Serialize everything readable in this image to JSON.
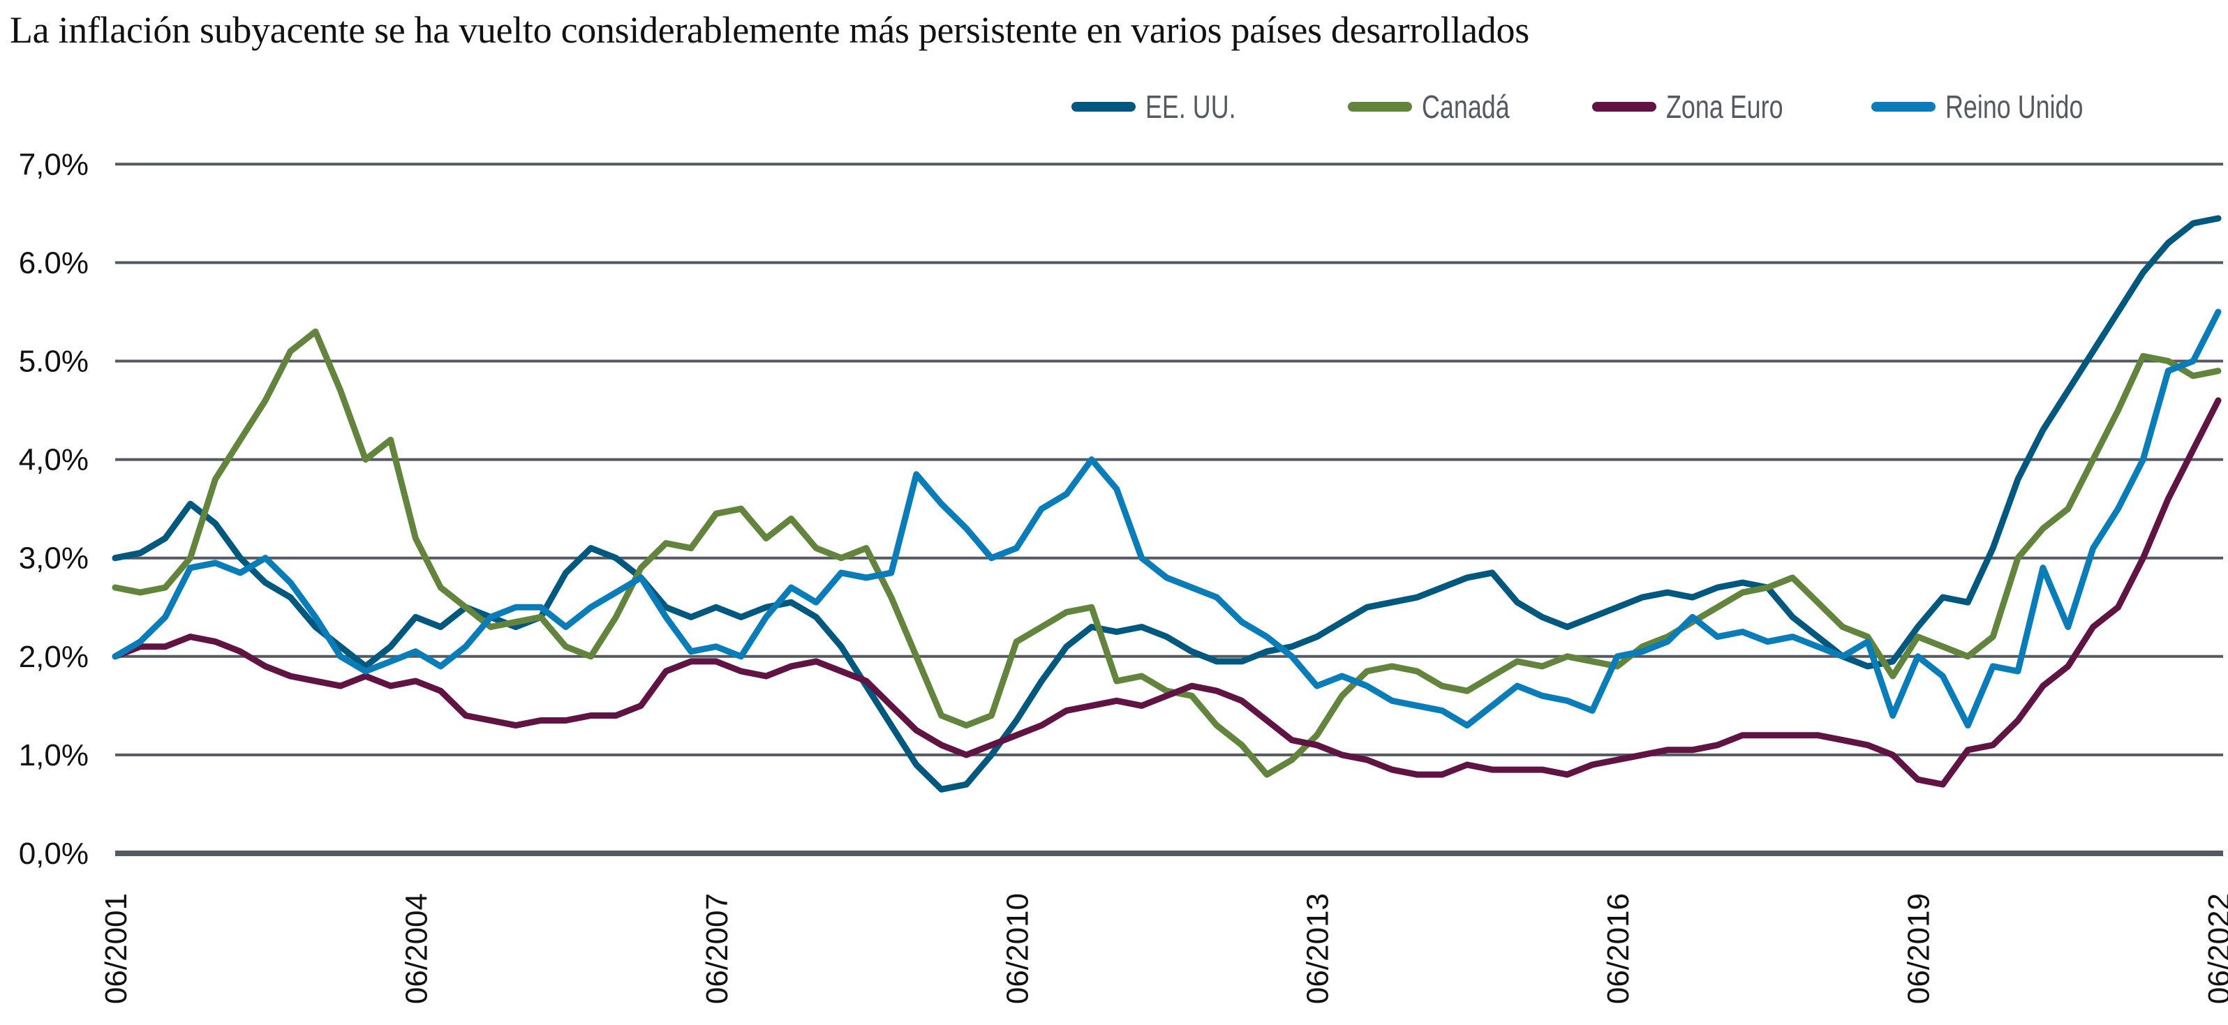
{
  "title": "La inflación subyacente se ha vuelto considerablemente más persistente en varios países desarrollados",
  "legend": [
    {
      "label": "EE. UU.",
      "color": "#00587f"
    },
    {
      "label": "Canadá",
      "color": "#63843d"
    },
    {
      "label": "Zona Euro",
      "color": "#601443"
    },
    {
      "label": "Reino Unido",
      "color": "#0a7db8"
    }
  ],
  "chart_data": {
    "type": "line",
    "title": "La inflación subyacente se ha vuelto considerablemente más persistente en varios países desarrollados",
    "xlabel": "",
    "ylabel": "",
    "ylim": [
      0,
      7
    ],
    "yticks": [
      "0,0%",
      "1,0%",
      "2,0%",
      "3,0%",
      "4,0%",
      "5.0%",
      "6.0%",
      "7,0%"
    ],
    "xticks": [
      "06/2001",
      "06/2004",
      "06/2007",
      "06/2010",
      "06/2013",
      "06/2016",
      "06/2019",
      "06/2022"
    ],
    "x_start": "06/2001",
    "x_end": "06/2022",
    "frequency": "quarterly",
    "grid": true,
    "legend_position": "top-right",
    "series": [
      {
        "name": "EE. UU.",
        "color": "#00587f",
        "values": [
          3.0,
          3.05,
          3.2,
          3.55,
          3.35,
          3.0,
          2.75,
          2.6,
          2.3,
          2.1,
          1.9,
          2.1,
          2.4,
          2.3,
          2.5,
          2.4,
          2.3,
          2.4,
          2.85,
          3.1,
          3.0,
          2.8,
          2.5,
          2.4,
          2.5,
          2.4,
          2.5,
          2.55,
          2.4,
          2.1,
          1.7,
          1.3,
          0.9,
          0.65,
          0.7,
          1.0,
          1.35,
          1.75,
          2.1,
          2.3,
          2.25,
          2.3,
          2.2,
          2.05,
          1.95,
          1.95,
          2.05,
          2.1,
          2.2,
          2.35,
          2.5,
          2.55,
          2.6,
          2.7,
          2.8,
          2.85,
          2.55,
          2.4,
          2.3,
          2.4,
          2.5,
          2.6,
          2.65,
          2.6,
          2.7,
          2.75,
          2.7,
          2.4,
          2.2,
          2.0,
          1.9,
          1.95,
          2.3,
          2.6,
          2.55,
          3.1,
          3.8,
          4.3,
          4.7,
          5.1,
          5.5,
          5.9,
          6.2,
          6.4,
          6.45
        ]
      },
      {
        "name": "Canadá",
        "color": "#63843d",
        "values": [
          2.7,
          2.65,
          2.7,
          3.0,
          3.8,
          4.2,
          4.6,
          5.1,
          5.3,
          4.7,
          4.0,
          4.2,
          3.2,
          2.7,
          2.5,
          2.3,
          2.35,
          2.4,
          2.1,
          2.0,
          2.4,
          2.9,
          3.15,
          3.1,
          3.45,
          3.5,
          3.2,
          3.4,
          3.1,
          3.0,
          3.1,
          2.6,
          2.0,
          1.4,
          1.3,
          1.4,
          2.15,
          2.3,
          2.45,
          2.5,
          1.75,
          1.8,
          1.65,
          1.6,
          1.3,
          1.1,
          0.8,
          0.95,
          1.2,
          1.6,
          1.85,
          1.9,
          1.85,
          1.7,
          1.65,
          1.8,
          1.95,
          1.9,
          2.0,
          1.95,
          1.9,
          2.1,
          2.2,
          2.35,
          2.5,
          2.65,
          2.7,
          2.8,
          2.55,
          2.3,
          2.2,
          1.8,
          2.2,
          2.1,
          2.0,
          2.2,
          3.0,
          3.3,
          3.5,
          4.0,
          4.5,
          5.05,
          5.0,
          4.85,
          4.9
        ]
      },
      {
        "name": "Zona Euro",
        "color": "#601443",
        "values": [
          2.0,
          2.1,
          2.1,
          2.2,
          2.15,
          2.05,
          1.9,
          1.8,
          1.75,
          1.7,
          1.8,
          1.7,
          1.75,
          1.65,
          1.4,
          1.35,
          1.3,
          1.35,
          1.35,
          1.4,
          1.4,
          1.5,
          1.85,
          1.95,
          1.95,
          1.85,
          1.8,
          1.9,
          1.95,
          1.85,
          1.75,
          1.5,
          1.25,
          1.1,
          1.0,
          1.1,
          1.2,
          1.3,
          1.45,
          1.5,
          1.55,
          1.5,
          1.6,
          1.7,
          1.65,
          1.55,
          1.35,
          1.15,
          1.1,
          1.0,
          0.95,
          0.85,
          0.8,
          0.8,
          0.9,
          0.85,
          0.85,
          0.85,
          0.8,
          0.9,
          0.95,
          1.0,
          1.05,
          1.05,
          1.1,
          1.2,
          1.2,
          1.2,
          1.2,
          1.15,
          1.1,
          1.0,
          0.75,
          0.7,
          1.05,
          1.1,
          1.35,
          1.7,
          1.9,
          2.3,
          2.5,
          3.0,
          3.6,
          4.1,
          4.6
        ]
      },
      {
        "name": "Reino Unido",
        "color": "#0a7db8",
        "values": [
          2.0,
          2.15,
          2.4,
          2.9,
          2.95,
          2.85,
          3.0,
          2.75,
          2.4,
          2.0,
          1.85,
          1.95,
          2.05,
          1.9,
          2.1,
          2.4,
          2.5,
          2.5,
          2.3,
          2.5,
          2.65,
          2.8,
          2.4,
          2.05,
          2.1,
          2.0,
          2.4,
          2.7,
          2.55,
          2.85,
          2.8,
          2.85,
          3.85,
          3.55,
          3.3,
          3.0,
          3.1,
          3.5,
          3.65,
          4.0,
          3.7,
          3.0,
          2.8,
          2.7,
          2.6,
          2.35,
          2.2,
          2.0,
          1.7,
          1.8,
          1.7,
          1.55,
          1.5,
          1.45,
          1.3,
          1.5,
          1.7,
          1.6,
          1.55,
          1.45,
          2.0,
          2.05,
          2.15,
          2.4,
          2.2,
          2.25,
          2.15,
          2.2,
          2.1,
          2.0,
          2.15,
          1.4,
          2.0,
          1.8,
          1.3,
          1.9,
          1.85,
          2.9,
          2.3,
          3.1,
          3.5,
          4.0,
          4.9,
          5.0,
          5.5
        ]
      }
    ]
  }
}
